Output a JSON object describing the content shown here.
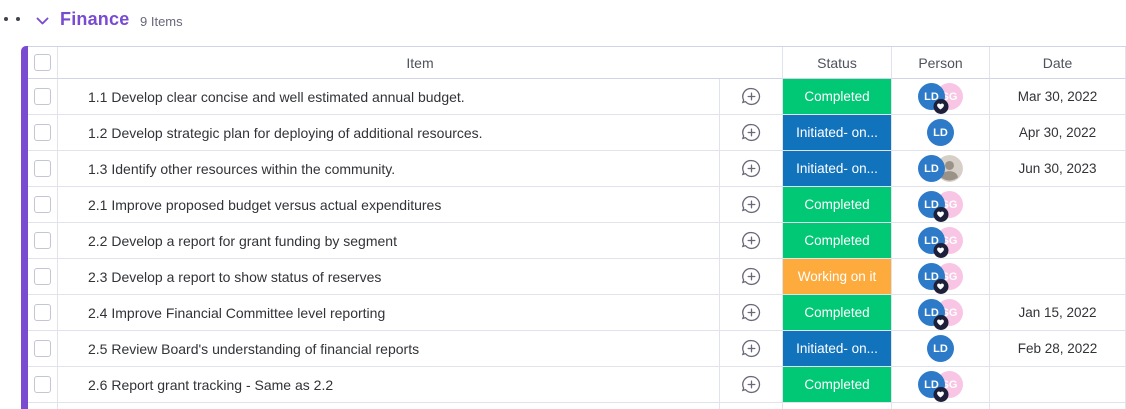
{
  "group": {
    "title": "Finance",
    "count": "9 Items",
    "color": "#784bd1"
  },
  "columns": {
    "item": "Item",
    "status": "Status",
    "person": "Person",
    "date": "Date"
  },
  "icons": {
    "collapse": "chevron-down",
    "drag": "drag-dots",
    "add_update": "speech-bubble-plus",
    "person_badge": "heart"
  },
  "status_colors": {
    "completed": "#00c875",
    "initiated": "#1273bd",
    "working_on_it": "#fdab3d"
  },
  "avatar_colors": {
    "LD": "#2d7ac9",
    "SG": "#f8c6e4"
  },
  "rows": [
    {
      "item": "1.1 Develop clear concise and well estimated annual budget.",
      "status": "Completed",
      "status_color": "#00c875",
      "persons": [
        {
          "type": "initials",
          "label": "LD",
          "color": "#2d7ac9"
        },
        {
          "type": "initials",
          "label": "SG",
          "color": "#f8c6e4"
        }
      ],
      "badge": "heart",
      "date": "Mar 30, 2022"
    },
    {
      "item": "1.2 Develop strategic plan for deploying of additional resources.",
      "status": "Initiated- on...",
      "status_color": "#1273bd",
      "persons": [
        {
          "type": "initials",
          "label": "LD",
          "color": "#2d7ac9"
        }
      ],
      "badge": "",
      "date": "Apr 30, 2022"
    },
    {
      "item": "1.3 Identify other resources within the community.",
      "status": "Initiated- on...",
      "status_color": "#1273bd",
      "persons": [
        {
          "type": "initials",
          "label": "LD",
          "color": "#2d7ac9"
        },
        {
          "type": "photo",
          "label": "",
          "color": "#d5cfc8"
        }
      ],
      "badge": "",
      "date": "Jun 30, 2023"
    },
    {
      "item": "2.1 Improve proposed budget versus actual expenditures",
      "status": "Completed",
      "status_color": "#00c875",
      "persons": [
        {
          "type": "initials",
          "label": "LD",
          "color": "#2d7ac9"
        },
        {
          "type": "initials",
          "label": "SG",
          "color": "#f8c6e4"
        }
      ],
      "badge": "heart",
      "date": ""
    },
    {
      "item": "2.2 Develop a report for grant funding by segment",
      "status": "Completed",
      "status_color": "#00c875",
      "persons": [
        {
          "type": "initials",
          "label": "LD",
          "color": "#2d7ac9"
        },
        {
          "type": "initials",
          "label": "SG",
          "color": "#f8c6e4"
        }
      ],
      "badge": "heart",
      "date": ""
    },
    {
      "item": "2.3 Develop a report to show status of reserves",
      "status": "Working on it",
      "status_color": "#fdab3d",
      "persons": [
        {
          "type": "initials",
          "label": "LD",
          "color": "#2d7ac9"
        },
        {
          "type": "initials",
          "label": "SG",
          "color": "#f8c6e4"
        }
      ],
      "badge": "heart",
      "date": ""
    },
    {
      "item": "2.4 Improve Financial Committee level reporting",
      "status": "Completed",
      "status_color": "#00c875",
      "persons": [
        {
          "type": "initials",
          "label": "LD",
          "color": "#2d7ac9"
        },
        {
          "type": "initials",
          "label": "SG",
          "color": "#f8c6e4"
        }
      ],
      "badge": "heart",
      "date": "Jan 15, 2022"
    },
    {
      "item": "2.5 Review Board's understanding of financial reports",
      "status": "Initiated- on...",
      "status_color": "#1273bd",
      "persons": [
        {
          "type": "initials",
          "label": "LD",
          "color": "#2d7ac9"
        }
      ],
      "badge": "",
      "date": "Feb 28, 2022"
    },
    {
      "item": "2.6 Report grant tracking - Same as 2.2",
      "status": "Completed",
      "status_color": "#00c875",
      "persons": [
        {
          "type": "initials",
          "label": "LD",
          "color": "#2d7ac9"
        },
        {
          "type": "initials",
          "label": "SG",
          "color": "#f8c6e4"
        }
      ],
      "badge": "heart",
      "date": ""
    }
  ]
}
